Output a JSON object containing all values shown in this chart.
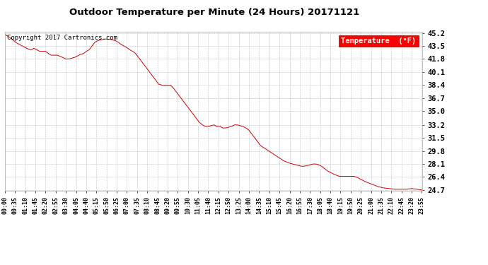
{
  "title": "Outdoor Temperature per Minute (24 Hours) 20171121",
  "copyright_text": "Copyright 2017 Cartronics.com",
  "legend_label": "Temperature  (°F)",
  "line_color": "#cc0000",
  "background_color": "#ffffff",
  "grid_color": "#c0c0c0",
  "yticks": [
    45.2,
    43.5,
    41.8,
    40.1,
    38.4,
    36.7,
    35.0,
    33.2,
    31.5,
    29.8,
    28.1,
    26.4,
    24.7
  ],
  "ymin": 24.7,
  "ymax": 45.2,
  "xtick_step_minutes": 35,
  "total_minutes": 1436,
  "key_points": [
    [
      0,
      45.0
    ],
    [
      10,
      44.8
    ],
    [
      20,
      44.5
    ],
    [
      30,
      44.2
    ],
    [
      40,
      43.9
    ],
    [
      60,
      43.5
    ],
    [
      80,
      43.1
    ],
    [
      90,
      43.0
    ],
    [
      100,
      43.2
    ],
    [
      110,
      43.0
    ],
    [
      120,
      42.8
    ],
    [
      140,
      42.8
    ],
    [
      150,
      42.5
    ],
    [
      160,
      42.3
    ],
    [
      180,
      42.3
    ],
    [
      200,
      42.0
    ],
    [
      210,
      41.8
    ],
    [
      220,
      41.8
    ],
    [
      230,
      41.9
    ],
    [
      240,
      42.0
    ],
    [
      250,
      42.2
    ],
    [
      260,
      42.4
    ],
    [
      270,
      42.5
    ],
    [
      280,
      42.8
    ],
    [
      290,
      43.0
    ],
    [
      300,
      43.5
    ],
    [
      310,
      44.0
    ],
    [
      320,
      44.2
    ],
    [
      330,
      44.3
    ],
    [
      340,
      44.4
    ],
    [
      350,
      44.4
    ],
    [
      360,
      44.4
    ],
    [
      370,
      44.3
    ],
    [
      380,
      44.2
    ],
    [
      390,
      44.0
    ],
    [
      400,
      43.7
    ],
    [
      410,
      43.5
    ],
    [
      420,
      43.3
    ],
    [
      430,
      43.0
    ],
    [
      440,
      42.8
    ],
    [
      450,
      42.5
    ],
    [
      460,
      42.0
    ],
    [
      470,
      41.5
    ],
    [
      480,
      41.0
    ],
    [
      490,
      40.5
    ],
    [
      500,
      40.0
    ],
    [
      510,
      39.5
    ],
    [
      520,
      39.0
    ],
    [
      530,
      38.5
    ],
    [
      540,
      38.4
    ],
    [
      550,
      38.3
    ],
    [
      560,
      38.3
    ],
    [
      570,
      38.4
    ],
    [
      580,
      38.0
    ],
    [
      590,
      37.5
    ],
    [
      600,
      37.0
    ],
    [
      610,
      36.5
    ],
    [
      620,
      36.0
    ],
    [
      630,
      35.5
    ],
    [
      640,
      35.0
    ],
    [
      650,
      34.5
    ],
    [
      660,
      34.0
    ],
    [
      670,
      33.5
    ],
    [
      680,
      33.2
    ],
    [
      690,
      33.0
    ],
    [
      700,
      33.0
    ],
    [
      710,
      33.1
    ],
    [
      720,
      33.2
    ],
    [
      730,
      33.0
    ],
    [
      740,
      33.0
    ],
    [
      750,
      32.8
    ],
    [
      760,
      32.8
    ],
    [
      770,
      32.9
    ],
    [
      780,
      33.0
    ],
    [
      790,
      33.2
    ],
    [
      800,
      33.2
    ],
    [
      810,
      33.1
    ],
    [
      820,
      33.0
    ],
    [
      830,
      32.8
    ],
    [
      840,
      32.5
    ],
    [
      850,
      32.0
    ],
    [
      860,
      31.5
    ],
    [
      870,
      31.0
    ],
    [
      880,
      30.5
    ],
    [
      900,
      30.0
    ],
    [
      920,
      29.5
    ],
    [
      940,
      29.0
    ],
    [
      960,
      28.5
    ],
    [
      980,
      28.2
    ],
    [
      1000,
      28.0
    ],
    [
      1020,
      27.8
    ],
    [
      1030,
      27.8
    ],
    [
      1040,
      27.9
    ],
    [
      1050,
      28.0
    ],
    [
      1060,
      28.1
    ],
    [
      1070,
      28.1
    ],
    [
      1080,
      28.0
    ],
    [
      1090,
      27.8
    ],
    [
      1100,
      27.5
    ],
    [
      1110,
      27.2
    ],
    [
      1120,
      27.0
    ],
    [
      1130,
      26.8
    ],
    [
      1150,
      26.5
    ],
    [
      1180,
      26.5
    ],
    [
      1200,
      26.5
    ],
    [
      1210,
      26.4
    ],
    [
      1220,
      26.2
    ],
    [
      1230,
      26.0
    ],
    [
      1240,
      25.8
    ],
    [
      1260,
      25.5
    ],
    [
      1280,
      25.2
    ],
    [
      1300,
      25.0
    ],
    [
      1320,
      24.9
    ],
    [
      1340,
      24.8
    ],
    [
      1360,
      24.8
    ],
    [
      1380,
      24.8
    ],
    [
      1400,
      24.9
    ],
    [
      1420,
      24.8
    ],
    [
      1436,
      24.7
    ]
  ]
}
